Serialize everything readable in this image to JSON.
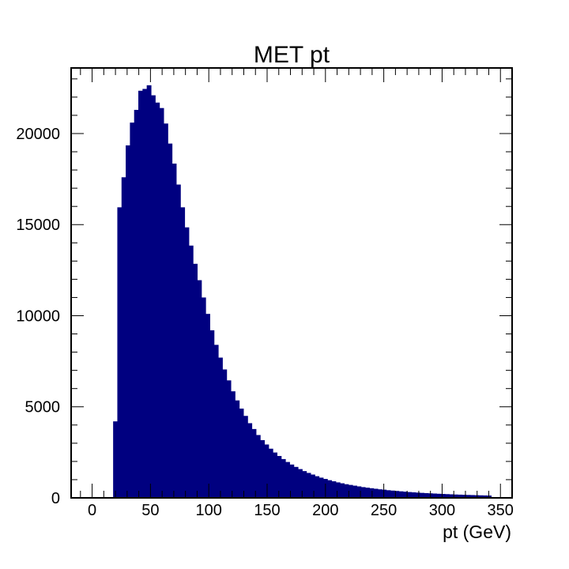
{
  "chart_data": {
    "type": "bar",
    "title": "MET pt",
    "xlabel": "pt (GeV)",
    "ylabel": "",
    "bin_edges_start": -18,
    "bin_width": 3.6,
    "xlim": [
      -18,
      360
    ],
    "ylim": [
      0,
      23600
    ],
    "xticks": [
      0,
      50,
      100,
      150,
      200,
      250,
      300,
      350
    ],
    "yticks": [
      0,
      5000,
      10000,
      15000,
      20000
    ],
    "grid": false,
    "legend": false,
    "colors": {
      "bar_fill": "#000080",
      "frame": "#000000",
      "background": "#ffffff"
    },
    "values": [
      0,
      0,
      0,
      0,
      0,
      0,
      0,
      0,
      0,
      0,
      4200,
      15950,
      17600,
      19350,
      20600,
      21300,
      22350,
      22450,
      22650,
      22100,
      21700,
      21400,
      20550,
      19450,
      18350,
      17200,
      15950,
      14850,
      13850,
      12850,
      11950,
      11000,
      10100,
      9200,
      8400,
      7700,
      7050,
      6450,
      5850,
      5350,
      4900,
      4500,
      4100,
      3780,
      3450,
      3170,
      2930,
      2700,
      2490,
      2300,
      2130,
      1970,
      1830,
      1700,
      1580,
      1470,
      1370,
      1280,
      1190,
      1110,
      1040,
      970,
      910,
      850,
      800,
      750,
      710,
      670,
      630,
      590,
      560,
      530,
      500,
      470,
      450,
      420,
      400,
      380,
      360,
      340,
      320,
      305,
      290,
      275,
      260,
      250,
      238,
      226,
      215,
      205,
      195,
      185,
      177,
      169,
      161,
      154,
      147,
      140,
      134,
      128
    ]
  }
}
